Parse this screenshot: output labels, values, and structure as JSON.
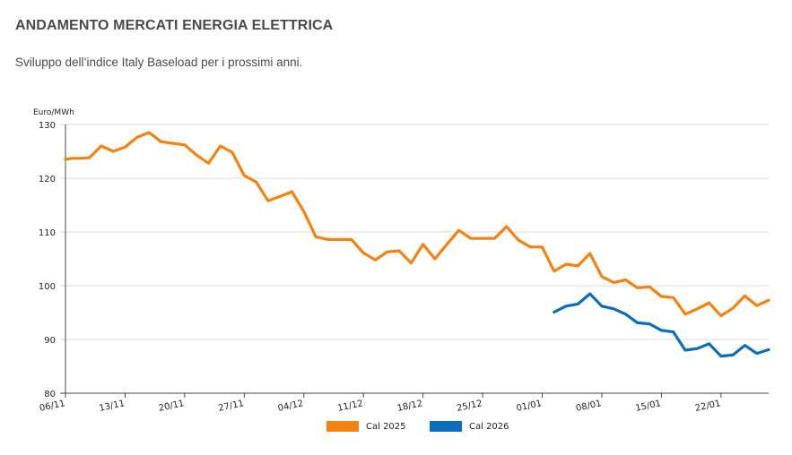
{
  "page": {
    "title": "ANDAMENTO MERCATI ENERGIA ELETTRICA",
    "subtitle": "Sviluppo dell’indice Italy Baseload per i prossimi anni."
  },
  "chart_data": {
    "type": "line",
    "ylabel": "Euro/MWh",
    "ylim": [
      80,
      130
    ],
    "yticks": [
      80,
      90,
      100,
      110,
      120,
      130
    ],
    "grid": true,
    "legend_position": "bottom",
    "x_labels": [
      "06/11",
      "13/11",
      "20/11",
      "27/11",
      "04/12",
      "11/12",
      "18/12",
      "25/12",
      "01/01",
      "08/01",
      "15/01",
      "22/01"
    ],
    "x_label_index": [
      0,
      5,
      10,
      15,
      20,
      25,
      30,
      35,
      40,
      45,
      50,
      55
    ],
    "series": [
      {
        "name": "Cal 2025",
        "color": "#f5820f",
        "x": [
          0,
          0.5,
          1,
          2,
          3,
          4,
          5,
          6,
          7,
          7.5,
          8,
          9,
          10,
          11,
          12,
          13,
          14,
          15,
          16,
          17,
          18,
          19,
          20,
          21,
          22,
          23,
          24,
          25,
          26,
          27,
          28,
          29,
          30,
          31,
          32,
          33,
          34,
          35,
          36,
          37,
          38,
          39,
          40,
          41,
          42,
          43,
          44,
          45,
          46,
          47,
          48,
          49,
          50,
          51,
          52,
          53,
          54,
          55,
          56,
          57,
          58,
          59
        ],
        "values": [
          123.5,
          123.7,
          123.7,
          123.8,
          126.0,
          125.0,
          125.8,
          127.6,
          128.5,
          127.7,
          126.8,
          126.5,
          126.2,
          124.3,
          122.8,
          126.0,
          124.8,
          120.5,
          119.3,
          115.8,
          116.6,
          117.5,
          113.8,
          109.1,
          108.6,
          108.6,
          108.6,
          106.1,
          104.8,
          106.3,
          106.5,
          104.2,
          107.7,
          105.0,
          107.7,
          110.3,
          108.8,
          108.8,
          108.8,
          111.0,
          108.5,
          107.2,
          107.2,
          102.7,
          104.0,
          103.7,
          106.0,
          101.7,
          100.6,
          101.1,
          99.6,
          99.8,
          98.0,
          97.8,
          94.7,
          95.7,
          96.8,
          94.4,
          95.8,
          98.1,
          96.3,
          97.3
        ]
      },
      {
        "name": "Cal 2026",
        "color": "#0a6ebd",
        "x": [
          41,
          42,
          43,
          44,
          45,
          46,
          47,
          48,
          49,
          50,
          51,
          52,
          53,
          54,
          55,
          56,
          57,
          58,
          59
        ],
        "values": [
          95.1,
          96.2,
          96.6,
          98.5,
          96.2,
          95.7,
          94.7,
          93.1,
          92.9,
          91.7,
          91.4,
          88.0,
          88.3,
          89.2,
          86.9,
          87.1,
          88.9,
          87.4,
          88.1
        ]
      }
    ]
  }
}
